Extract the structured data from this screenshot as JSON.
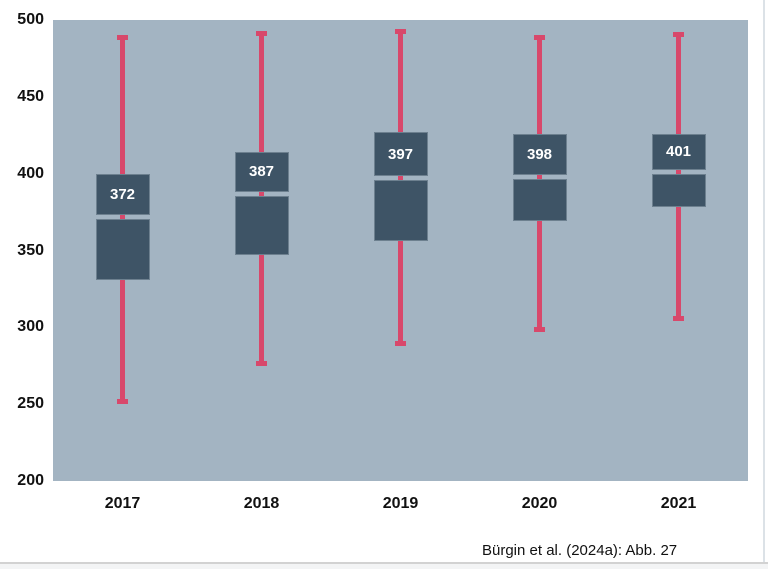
{
  "page": {
    "caption": "Bürgin et al. (2024a): Abb. 27"
  },
  "chart_data": {
    "type": "boxplot",
    "title": "",
    "xlabel": "",
    "ylabel": "",
    "categories": [
      "2017",
      "2018",
      "2019",
      "2020",
      "2021"
    ],
    "yticks": [
      500,
      450,
      400,
      350,
      300,
      250,
      200
    ],
    "ylim": [
      200,
      500
    ],
    "grid": false,
    "legend": false,
    "series": [
      {
        "name": "2017",
        "min": 250,
        "q1": 331,
        "median": 372,
        "q3": 400,
        "max": 490,
        "median_label": "372"
      },
      {
        "name": "2018",
        "min": 275,
        "q1": 347,
        "median": 387,
        "q3": 414,
        "max": 493,
        "median_label": "387"
      },
      {
        "name": "2019",
        "min": 288,
        "q1": 356,
        "median": 397,
        "q3": 427,
        "max": 494,
        "median_label": "397"
      },
      {
        "name": "2020",
        "min": 297,
        "q1": 369,
        "median": 398,
        "q3": 426,
        "max": 490,
        "median_label": "398"
      },
      {
        "name": "2021",
        "min": 304,
        "q1": 378,
        "median": 401,
        "q3": 426,
        "max": 492,
        "median_label": "401"
      }
    ],
    "colors": {
      "plot_bg": "#a3b4c2",
      "box": "#3e5466",
      "whisker": "#d8486b",
      "median_label_text": "#ffffff",
      "axis_text": "#111111"
    }
  }
}
